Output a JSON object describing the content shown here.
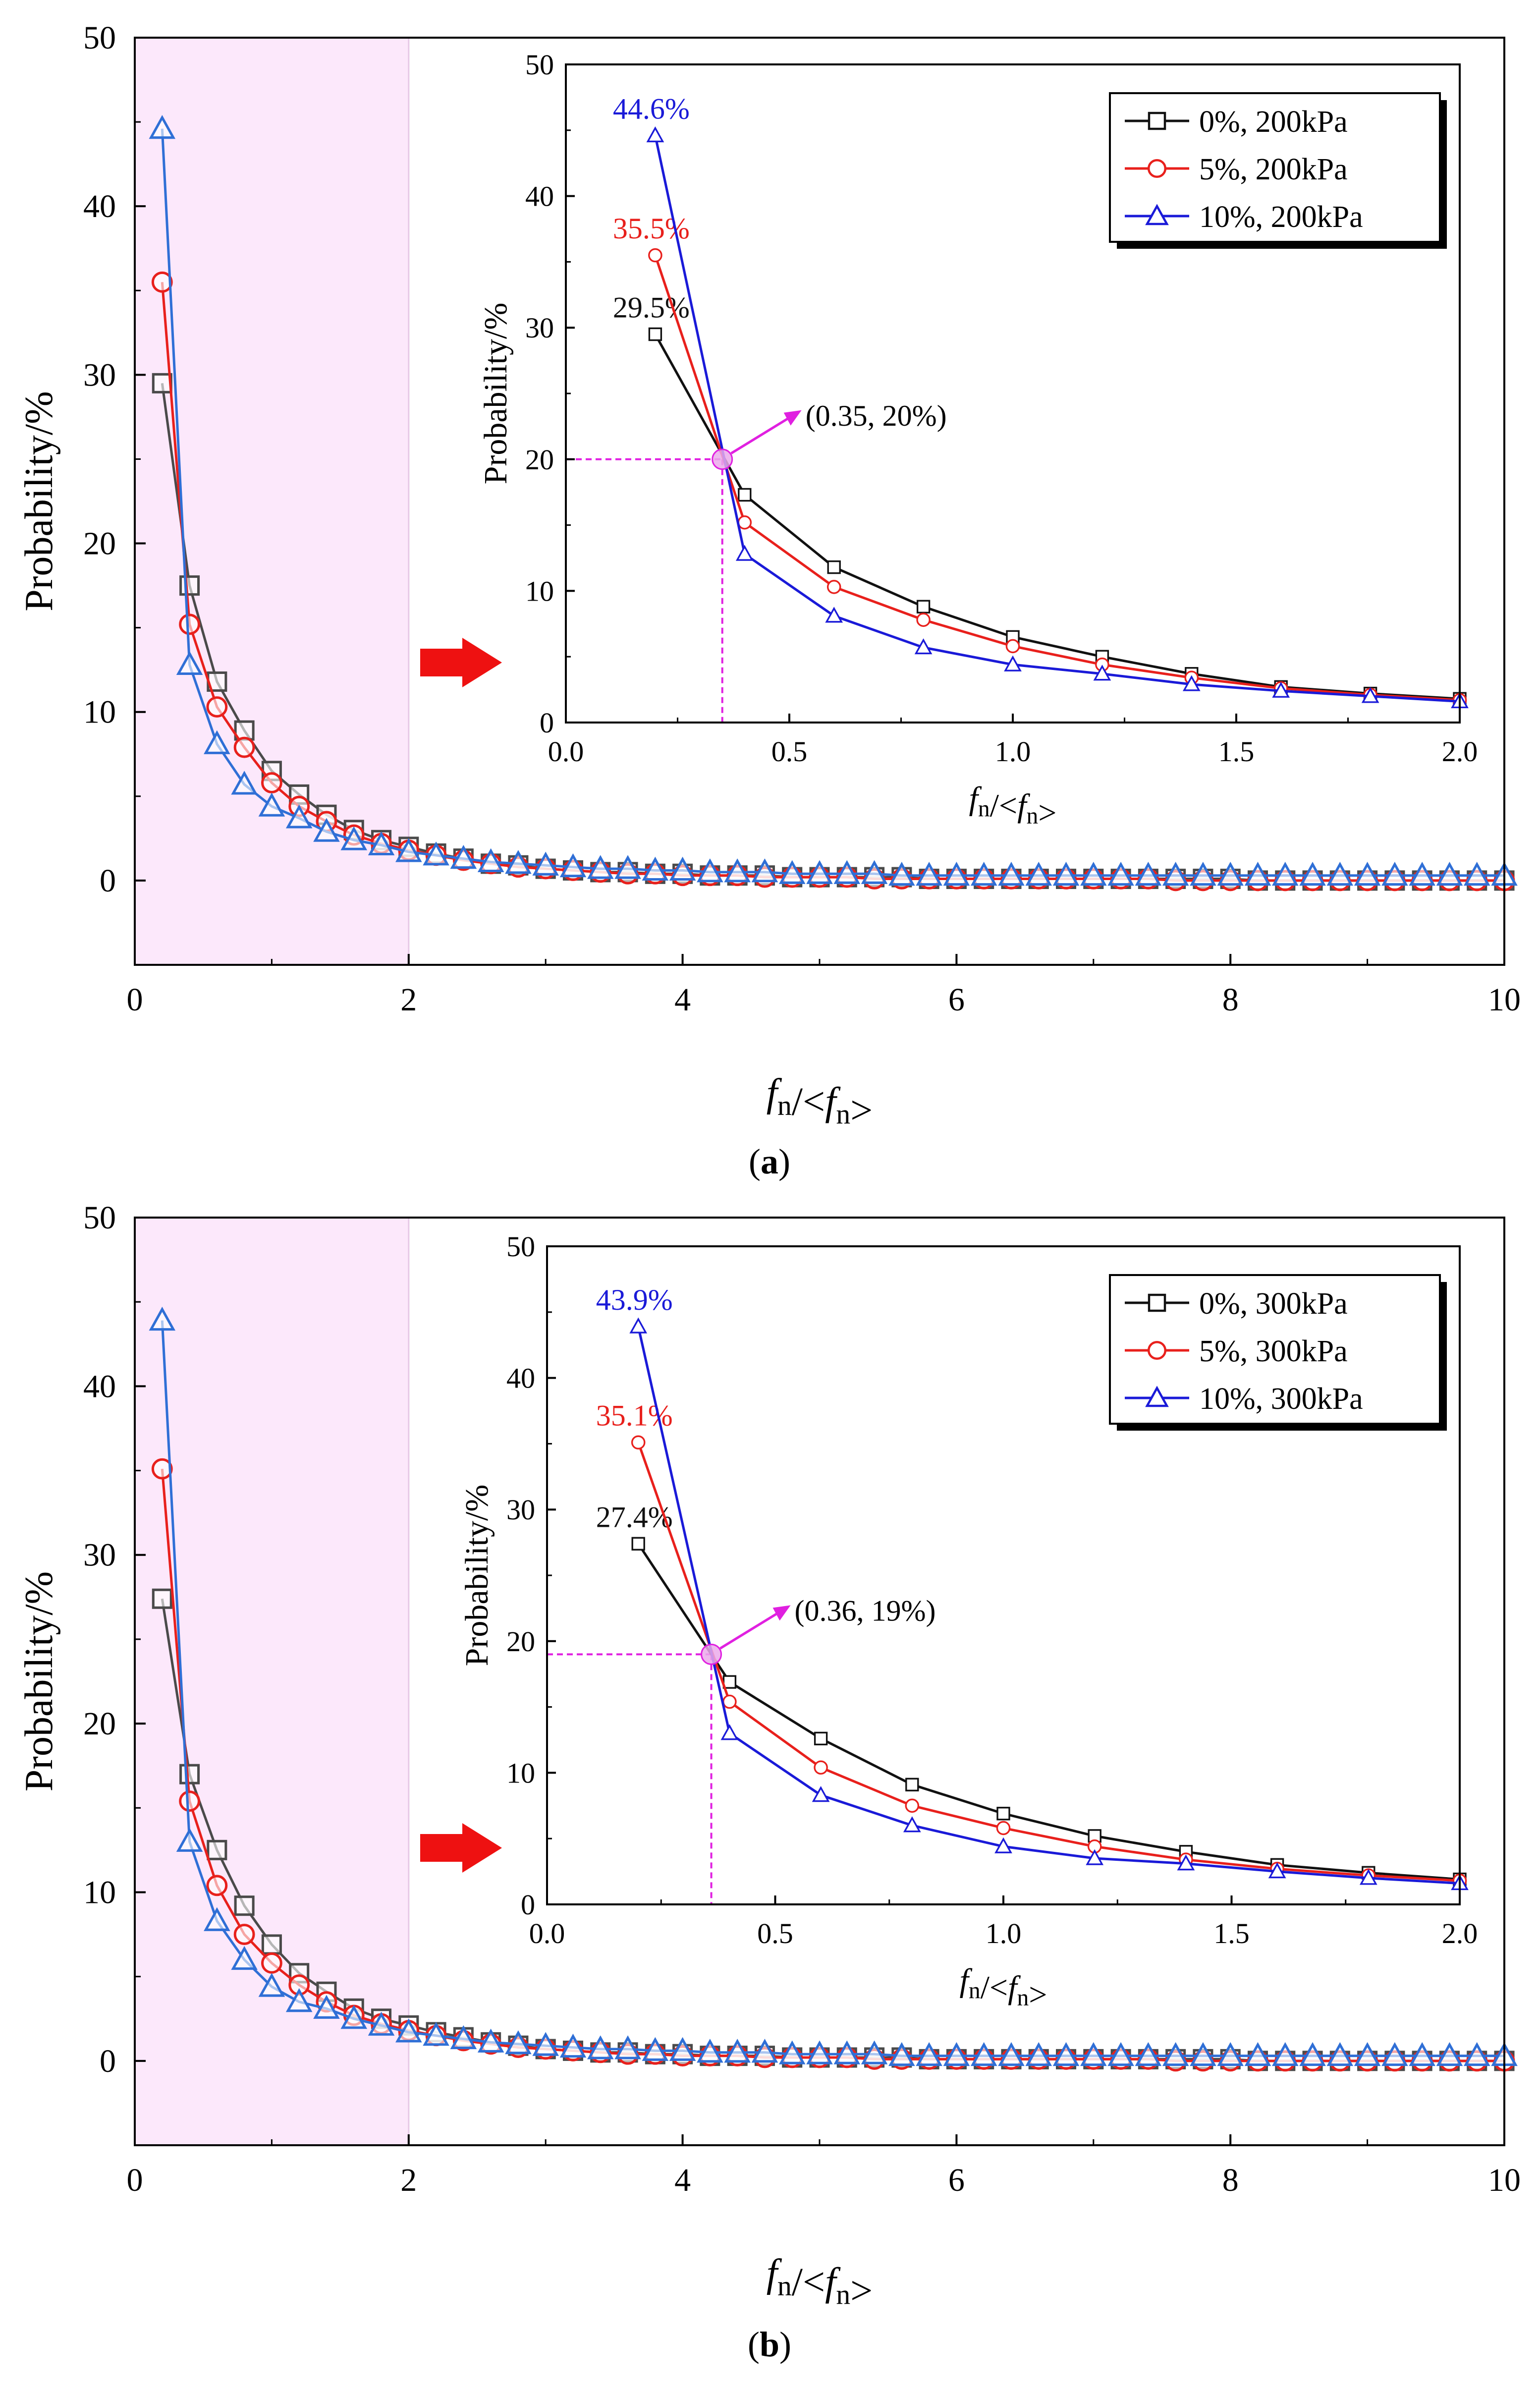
{
  "panels": [
    {
      "caption": "(a)",
      "main": {
        "type": "line",
        "xlim": [
          0,
          10
        ],
        "ylim": [
          -5,
          50
        ],
        "xticks": [
          "0",
          "2",
          "4",
          "6",
          "8",
          "10"
        ],
        "yticks": [
          "0",
          "10",
          "20",
          "30",
          "40",
          "50"
        ],
        "xlabel": "fn/<fn>",
        "ylabel": "Probability/%",
        "highlight_range": [
          0,
          2
        ],
        "series": [
          {
            "color": "#4a4a4a",
            "marker": "square",
            "x": [
              0.2,
              0.4,
              0.6,
              0.8,
              1.0,
              1.2,
              1.4,
              1.6,
              1.8,
              2.0,
              2.2,
              2.4,
              2.6,
              2.8,
              3.0,
              3.2,
              3.4,
              3.6,
              3.8,
              4.0,
              4.2,
              4.4,
              4.6,
              4.8,
              5.0,
              5.2,
              5.4,
              5.6,
              5.8,
              6.0,
              6.2,
              6.4,
              6.6,
              6.8,
              7.0,
              7.2,
              7.4,
              7.6,
              7.8,
              8.0,
              8.2,
              8.4,
              8.6,
              8.8,
              9.0,
              9.2,
              9.4,
              9.6,
              9.8,
              10.0
            ],
            "y": [
              29.5,
              17.5,
              11.8,
              8.9,
              6.5,
              5.1,
              3.9,
              3.0,
              2.4,
              2.0,
              1.6,
              1.3,
              1.0,
              0.9,
              0.7,
              0.6,
              0.5,
              0.5,
              0.4,
              0.4,
              0.3,
              0.3,
              0.3,
              0.2,
              0.2,
              0.2,
              0.2,
              0.2,
              0.1,
              0.1,
              0.1,
              0.1,
              0.1,
              0.1,
              0.1,
              0.1,
              0.1,
              0.1,
              0.1,
              0.1,
              0.0,
              0.0,
              0.0,
              0.0,
              0.0,
              0.0,
              0.0,
              0.0,
              0.0,
              0.0
            ]
          },
          {
            "color": "#e8201c",
            "marker": "circle",
            "x": [
              0.2,
              0.4,
              0.6,
              0.8,
              1.0,
              1.2,
              1.4,
              1.6,
              1.8,
              2.0,
              2.2,
              2.4,
              2.6,
              2.8,
              3.0,
              3.2,
              3.4,
              3.6,
              3.8,
              4.0,
              4.2,
              4.4,
              4.6,
              4.8,
              5.0,
              5.2,
              5.4,
              5.6,
              5.8,
              6.0,
              6.2,
              6.4,
              6.6,
              6.8,
              7.0,
              7.2,
              7.4,
              7.6,
              7.8,
              8.0,
              8.2,
              8.4,
              8.6,
              8.8,
              9.0,
              9.2,
              9.4,
              9.6,
              9.8,
              10.0
            ],
            "y": [
              35.5,
              15.2,
              10.3,
              7.9,
              5.8,
              4.4,
              3.5,
              2.7,
              2.2,
              1.8,
              1.5,
              1.2,
              1.0,
              0.8,
              0.7,
              0.6,
              0.5,
              0.4,
              0.4,
              0.3,
              0.3,
              0.3,
              0.2,
              0.2,
              0.2,
              0.2,
              0.1,
              0.1,
              0.1,
              0.1,
              0.1,
              0.1,
              0.1,
              0.1,
              0.1,
              0.1,
              0.1,
              0.0,
              0.0,
              0.0,
              0.0,
              0.0,
              0.0,
              0.0,
              0.0,
              0.0,
              0.0,
              0.0,
              0.0,
              0.0
            ]
          },
          {
            "color": "#2f6fd6",
            "marker": "triangle",
            "x": [
              0.2,
              0.4,
              0.6,
              0.8,
              1.0,
              1.2,
              1.4,
              1.6,
              1.8,
              2.0,
              2.2,
              2.4,
              2.6,
              2.8,
              3.0,
              3.2,
              3.4,
              3.6,
              3.8,
              4.0,
              4.2,
              4.4,
              4.6,
              4.8,
              5.0,
              5.2,
              5.4,
              5.6,
              5.8,
              6.0,
              6.2,
              6.4,
              6.6,
              6.8,
              7.0,
              7.2,
              7.4,
              7.6,
              7.8,
              8.0,
              8.2,
              8.4,
              8.6,
              8.8,
              9.0,
              9.2,
              9.4,
              9.6,
              9.8,
              10.0
            ],
            "y": [
              44.6,
              12.8,
              8.1,
              5.7,
              4.4,
              3.7,
              2.9,
              2.4,
              2.1,
              1.7,
              1.5,
              1.3,
              1.1,
              1.0,
              0.9,
              0.8,
              0.7,
              0.7,
              0.6,
              0.6,
              0.5,
              0.5,
              0.5,
              0.4,
              0.4,
              0.4,
              0.4,
              0.3,
              0.3,
              0.3,
              0.3,
              0.3,
              0.3,
              0.3,
              0.3,
              0.3,
              0.3,
              0.3,
              0.3,
              0.3,
              0.3,
              0.3,
              0.3,
              0.3,
              0.3,
              0.3,
              0.3,
              0.3,
              0.3,
              0.3
            ]
          }
        ]
      },
      "inset": {
        "type": "line",
        "xlim": [
          0,
          2
        ],
        "ylim": [
          0,
          50
        ],
        "xticks": [
          "0.0",
          "0.5",
          "1.0",
          "1.5",
          "2.0"
        ],
        "yticks": [
          "0",
          "10",
          "20",
          "30",
          "40",
          "50"
        ],
        "xlabel": "fn/<fn>",
        "ylabel": "Probability/%",
        "legend_position": "top-right",
        "crossing": {
          "x": 0.35,
          "y": 20,
          "label": "(0.35, 20%)"
        },
        "series": [
          {
            "name": "0%, 200kPa",
            "color": "#111111",
            "marker": "square",
            "peak_label": "29.5%",
            "x": [
              0.2,
              0.4,
              0.6,
              0.8,
              1.0,
              1.2,
              1.4,
              1.6,
              1.8,
              2.0
            ],
            "y": [
              29.5,
              17.3,
              11.8,
              8.8,
              6.5,
              5.0,
              3.7,
              2.7,
              2.2,
              1.8
            ]
          },
          {
            "name": "5%, 200kPa",
            "color": "#e8201c",
            "marker": "circle",
            "peak_label": "35.5%",
            "x": [
              0.2,
              0.4,
              0.6,
              0.8,
              1.0,
              1.2,
              1.4,
              1.6,
              1.8,
              2.0
            ],
            "y": [
              35.5,
              15.2,
              10.3,
              7.8,
              5.8,
              4.4,
              3.4,
              2.6,
              2.1,
              1.7
            ]
          },
          {
            "name": "10%, 200kPa",
            "color": "#1a1ad8",
            "marker": "triangle",
            "peak_label": "44.6%",
            "x": [
              0.2,
              0.4,
              0.6,
              0.8,
              1.0,
              1.2,
              1.4,
              1.6,
              1.8,
              2.0
            ],
            "y": [
              44.6,
              12.8,
              8.1,
              5.7,
              4.4,
              3.7,
              2.9,
              2.4,
              2.0,
              1.6
            ]
          }
        ]
      }
    },
    {
      "caption": "(b)",
      "main": {
        "type": "line",
        "xlim": [
          0,
          10
        ],
        "ylim": [
          -5,
          50
        ],
        "xticks": [
          "0",
          "2",
          "4",
          "6",
          "8",
          "10"
        ],
        "yticks": [
          "0",
          "10",
          "20",
          "30",
          "40",
          "50"
        ],
        "xlabel": "fn/<fn>",
        "ylabel": "Probability/%",
        "highlight_range": [
          0,
          2
        ],
        "series": [
          {
            "color": "#4a4a4a",
            "marker": "square",
            "x": [
              0.2,
              0.4,
              0.6,
              0.8,
              1.0,
              1.2,
              1.4,
              1.6,
              1.8,
              2.0,
              2.2,
              2.4,
              2.6,
              2.8,
              3.0,
              3.2,
              3.4,
              3.6,
              3.8,
              4.0,
              4.2,
              4.4,
              4.6,
              4.8,
              5.0,
              5.2,
              5.4,
              5.6,
              5.8,
              6.0,
              6.2,
              6.4,
              6.6,
              6.8,
              7.0,
              7.2,
              7.4,
              7.6,
              7.8,
              8.0,
              8.2,
              8.4,
              8.6,
              8.8,
              9.0,
              9.2,
              9.4,
              9.6,
              9.8,
              10.0
            ],
            "y": [
              27.4,
              17.0,
              12.5,
              9.2,
              6.9,
              5.2,
              4.1,
              3.1,
              2.5,
              2.1,
              1.7,
              1.4,
              1.1,
              0.9,
              0.7,
              0.6,
              0.5,
              0.5,
              0.4,
              0.4,
              0.3,
              0.3,
              0.3,
              0.2,
              0.2,
              0.2,
              0.2,
              0.2,
              0.1,
              0.1,
              0.1,
              0.1,
              0.1,
              0.1,
              0.1,
              0.1,
              0.1,
              0.1,
              0.1,
              0.1,
              0.0,
              0.0,
              0.0,
              0.0,
              0.0,
              0.0,
              0.0,
              0.0,
              0.0,
              0.0
            ]
          },
          {
            "color": "#e8201c",
            "marker": "circle",
            "x": [
              0.2,
              0.4,
              0.6,
              0.8,
              1.0,
              1.2,
              1.4,
              1.6,
              1.8,
              2.0,
              2.2,
              2.4,
              2.6,
              2.8,
              3.0,
              3.2,
              3.4,
              3.6,
              3.8,
              4.0,
              4.2,
              4.4,
              4.6,
              4.8,
              5.0,
              5.2,
              5.4,
              5.6,
              5.8,
              6.0,
              6.2,
              6.4,
              6.6,
              6.8,
              7.0,
              7.2,
              7.4,
              7.6,
              7.8,
              8.0,
              8.2,
              8.4,
              8.6,
              8.8,
              9.0,
              9.2,
              9.4,
              9.6,
              9.8,
              10.0
            ],
            "y": [
              35.1,
              15.4,
              10.4,
              7.5,
              5.8,
              4.5,
              3.5,
              2.7,
              2.2,
              1.8,
              1.5,
              1.2,
              1.0,
              0.8,
              0.7,
              0.6,
              0.5,
              0.4,
              0.4,
              0.3,
              0.3,
              0.3,
              0.2,
              0.2,
              0.2,
              0.2,
              0.1,
              0.1,
              0.1,
              0.1,
              0.1,
              0.1,
              0.1,
              0.1,
              0.1,
              0.1,
              0.1,
              0.0,
              0.0,
              0.0,
              0.0,
              0.0,
              0.0,
              0.0,
              0.0,
              0.0,
              0.0,
              0.0,
              0.0,
              0.0
            ]
          },
          {
            "color": "#2f6fd6",
            "marker": "triangle",
            "x": [
              0.2,
              0.4,
              0.6,
              0.8,
              1.0,
              1.2,
              1.4,
              1.6,
              1.8,
              2.0,
              2.2,
              2.4,
              2.6,
              2.8,
              3.0,
              3.2,
              3.4,
              3.6,
              3.8,
              4.0,
              4.2,
              4.4,
              4.6,
              4.8,
              5.0,
              5.2,
              5.4,
              5.6,
              5.8,
              6.0,
              6.2,
              6.4,
              6.6,
              6.8,
              7.0,
              7.2,
              7.4,
              7.6,
              7.8,
              8.0,
              8.2,
              8.4,
              8.6,
              8.8,
              9.0,
              9.2,
              9.4,
              9.6,
              9.8,
              10.0
            ],
            "y": [
              43.9,
              13.0,
              8.3,
              6.0,
              4.4,
              3.5,
              3.1,
              2.5,
              2.1,
              1.7,
              1.5,
              1.3,
              1.1,
              1.0,
              0.9,
              0.8,
              0.7,
              0.7,
              0.6,
              0.6,
              0.5,
              0.5,
              0.5,
              0.4,
              0.4,
              0.4,
              0.4,
              0.3,
              0.3,
              0.3,
              0.3,
              0.3,
              0.3,
              0.3,
              0.3,
              0.3,
              0.3,
              0.3,
              0.3,
              0.3,
              0.3,
              0.3,
              0.3,
              0.3,
              0.3,
              0.3,
              0.3,
              0.3,
              0.3,
              0.3
            ]
          }
        ]
      },
      "inset": {
        "type": "line",
        "xlim": [
          0,
          2
        ],
        "ylim": [
          0,
          50
        ],
        "xticks": [
          "0.0",
          "0.5",
          "1.0",
          "1.5",
          "2.0"
        ],
        "yticks": [
          "0",
          "10",
          "20",
          "30",
          "40",
          "50"
        ],
        "xlabel": "fn/<fn>",
        "ylabel": "Probability/%",
        "legend_position": "top-right",
        "crossing": {
          "x": 0.36,
          "y": 19,
          "label": "(0.36, 19%)"
        },
        "series": [
          {
            "name": "0%, 300kPa",
            "color": "#111111",
            "marker": "square",
            "peak_label": "27.4%",
            "x": [
              0.2,
              0.4,
              0.6,
              0.8,
              1.0,
              1.2,
              1.4,
              1.6,
              1.8,
              2.0
            ],
            "y": [
              27.4,
              16.9,
              12.6,
              9.1,
              6.9,
              5.2,
              4.0,
              3.0,
              2.4,
              1.9
            ]
          },
          {
            "name": "5%, 300kPa",
            "color": "#e8201c",
            "marker": "circle",
            "peak_label": "35.1%",
            "x": [
              0.2,
              0.4,
              0.6,
              0.8,
              1.0,
              1.2,
              1.4,
              1.6,
              1.8,
              2.0
            ],
            "y": [
              35.1,
              15.4,
              10.4,
              7.5,
              5.8,
              4.4,
              3.4,
              2.7,
              2.2,
              1.8
            ]
          },
          {
            "name": "10%, 300kPa",
            "color": "#1a1ad8",
            "marker": "triangle",
            "peak_label": "43.9%",
            "x": [
              0.2,
              0.4,
              0.6,
              0.8,
              1.0,
              1.2,
              1.4,
              1.6,
              1.8,
              2.0
            ],
            "y": [
              43.9,
              13.0,
              8.3,
              6.0,
              4.4,
              3.5,
              3.1,
              2.5,
              2.0,
              1.6
            ]
          }
        ]
      }
    }
  ],
  "colors": {
    "highlight": "#fce8fb",
    "crossing": "#e020e0",
    "arrow": "#ee1111",
    "peak_label_colors": [
      "#111111",
      "#e8201c",
      "#1a1ad8"
    ]
  },
  "chart_data": [
    {
      "type": "line",
      "panel": "(a) main",
      "xlim": [
        0,
        10
      ],
      "ylim": [
        -5,
        50
      ],
      "xlabel": "fn/<fn>",
      "ylabel": "Probability/%"
    },
    {
      "type": "line",
      "panel": "(a) inset",
      "xlim": [
        0,
        2
      ],
      "ylim": [
        0,
        50
      ],
      "xlabel": "fn/<fn>",
      "ylabel": "Probability/%",
      "legend": [
        "0%, 200kPa",
        "5%, 200kPa",
        "10%, 200kPa"
      ],
      "annotation": "(0.35, 20%)"
    },
    {
      "type": "line",
      "panel": "(b) main",
      "xlim": [
        0,
        10
      ],
      "ylim": [
        -5,
        50
      ],
      "xlabel": "fn/<fn>",
      "ylabel": "Probability/%"
    },
    {
      "type": "line",
      "panel": "(b) inset",
      "xlim": [
        0,
        2
      ],
      "ylim": [
        0,
        50
      ],
      "xlabel": "fn/<fn>",
      "ylabel": "Probability/%",
      "legend": [
        "0%, 300kPa",
        "5%, 300kPa",
        "10%, 300kPa"
      ],
      "annotation": "(0.36, 19%)"
    }
  ]
}
